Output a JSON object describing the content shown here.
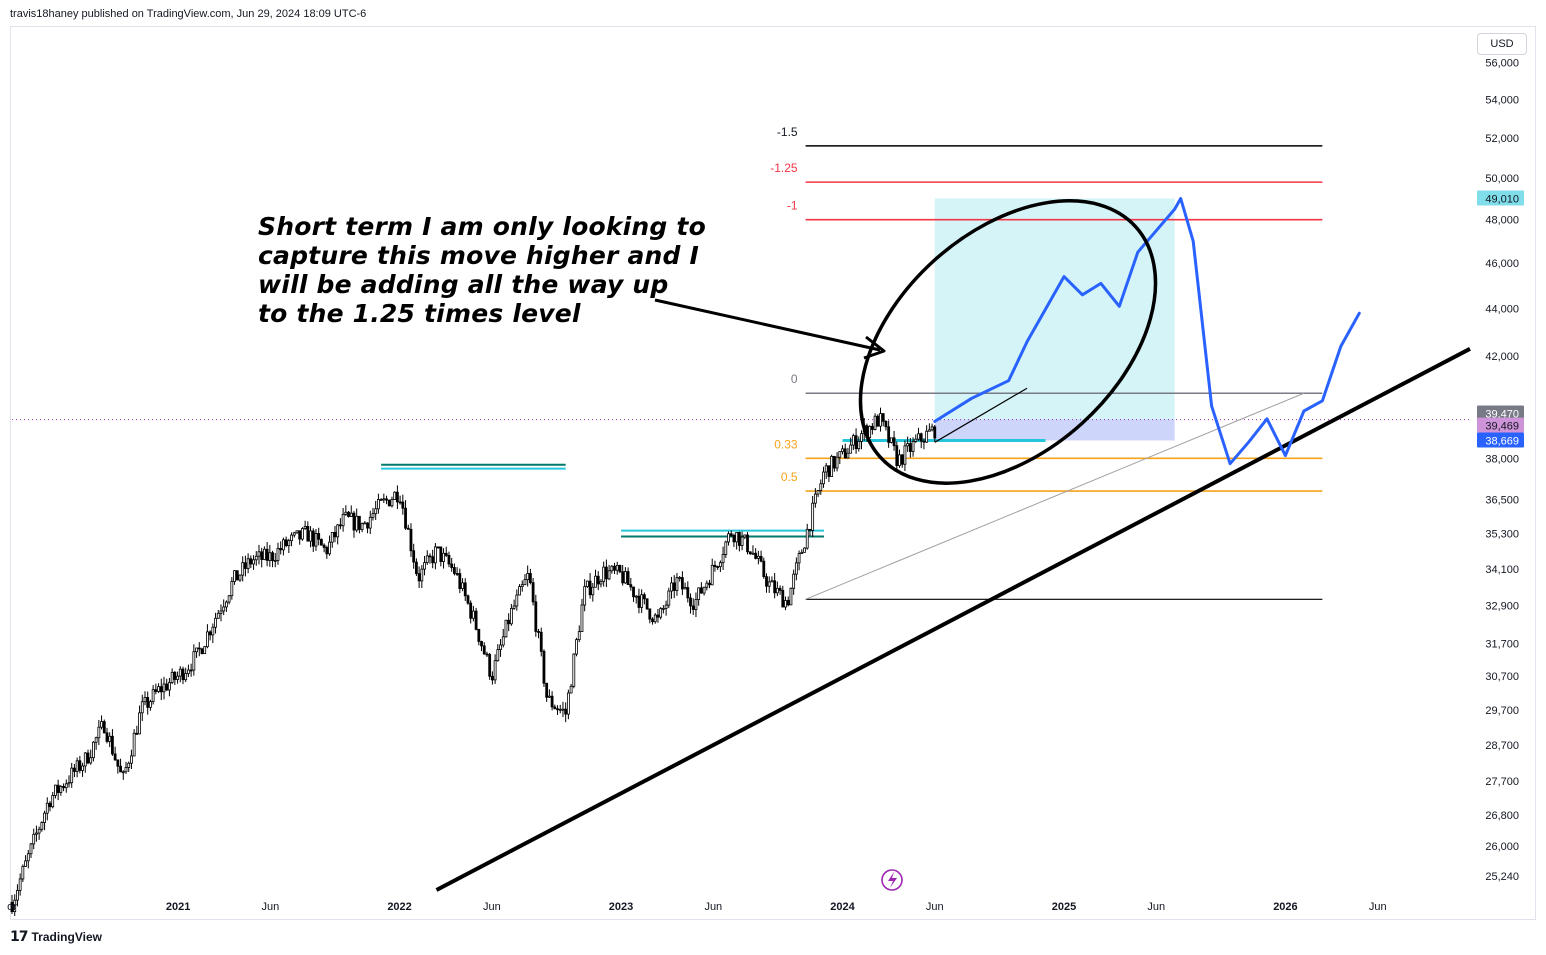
{
  "attribution": "travis18haney published on TradingView.com, Jun 29, 2024 18:09 UTC-6",
  "currency": "USD",
  "footer_brand": "TradingView",
  "annotation_lines": [
    "Short term I am only looking to",
    "capture this move higher and I",
    "will be adding all the way up",
    "to the 1.25 times level"
  ],
  "colors": {
    "candles": "#000000",
    "forecast_path": "#2962ff",
    "fib_extension": "#f23645",
    "fib_retracement": "#f7a21b",
    "projection_box": "#b2ebf2",
    "trendline": "#000000",
    "current_price_line": "#9c27b0",
    "price_badge_current": "#787b86",
    "price_badge_prev": "#ce93d8",
    "price_badge_alert": "#2962ff",
    "price_badge_target": "#80deea"
  },
  "lightning_icon": "lightning-icon",
  "chart_data": {
    "type": "candlestick",
    "title": "",
    "y_axis": {
      "ticks": [
        {
          "value": 56000,
          "label": "56,000"
        },
        {
          "value": 54000,
          "label": "54,000"
        },
        {
          "value": 52000,
          "label": "52,000"
        },
        {
          "value": 50000,
          "label": "50,000"
        },
        {
          "value": 48000,
          "label": "48,000"
        },
        {
          "value": 46000,
          "label": "46,000"
        },
        {
          "value": 44000,
          "label": "44,000"
        },
        {
          "value": 42000,
          "label": "42,000"
        },
        {
          "value": 38000,
          "label": "38,000"
        },
        {
          "value": 36500,
          "label": "36,500"
        },
        {
          "value": 35300,
          "label": "35,300"
        },
        {
          "value": 34100,
          "label": "34,100"
        },
        {
          "value": 32900,
          "label": "32,900"
        },
        {
          "value": 31700,
          "label": "31,700"
        },
        {
          "value": 30700,
          "label": "30,700"
        },
        {
          "value": 29700,
          "label": "29,700"
        },
        {
          "value": 28700,
          "label": "28,700"
        },
        {
          "value": 27700,
          "label": "27,700"
        },
        {
          "value": 26800,
          "label": "26,800"
        },
        {
          "value": 26000,
          "label": "26,000"
        },
        {
          "value": 25240,
          "label": "25,240"
        }
      ],
      "scale": "log",
      "range": [
        24900,
        57800
      ]
    },
    "x_axis": {
      "ticks": [
        {
          "label": "or",
          "date": "2020-04"
        },
        {
          "label": "2021",
          "date": "2021-01"
        },
        {
          "label": "Jun",
          "date": "2021-06"
        },
        {
          "label": "2022",
          "date": "2022-01"
        },
        {
          "label": "Jun",
          "date": "2022-06"
        },
        {
          "label": "2023",
          "date": "2023-01"
        },
        {
          "label": "Jun",
          "date": "2023-06"
        },
        {
          "label": "2024",
          "date": "2024-01"
        },
        {
          "label": "Jun",
          "date": "2024-06"
        },
        {
          "label": "2025",
          "date": "2025-01"
        },
        {
          "label": "Jun",
          "date": "2025-06"
        },
        {
          "label": "2026",
          "date": "2026-01"
        },
        {
          "label": "Jun",
          "date": "2026-06"
        }
      ],
      "range": [
        "2020-04",
        "2026-11"
      ]
    },
    "price_path": [
      {
        "date": "2020-04",
        "close": 24600
      },
      {
        "date": "2020-06",
        "close": 27200
      },
      {
        "date": "2020-08",
        "close": 28300
      },
      {
        "date": "2020-09",
        "close": 29300
      },
      {
        "date": "2020-10",
        "close": 27700
      },
      {
        "date": "2020-11",
        "close": 29700
      },
      {
        "date": "2020-12",
        "close": 30300
      },
      {
        "date": "2021-01",
        "close": 30700
      },
      {
        "date": "2021-02",
        "close": 31300
      },
      {
        "date": "2021-03",
        "close": 32500
      },
      {
        "date": "2021-04",
        "close": 33700
      },
      {
        "date": "2021-05",
        "close": 34400
      },
      {
        "date": "2021-06",
        "close": 34500
      },
      {
        "date": "2021-07",
        "close": 35000
      },
      {
        "date": "2021-08",
        "close": 35300
      },
      {
        "date": "2021-09",
        "close": 34700
      },
      {
        "date": "2021-10",
        "close": 35800
      },
      {
        "date": "2021-11",
        "close": 35600
      },
      {
        "date": "2021-12",
        "close": 36300
      },
      {
        "date": "2022-01",
        "close": 36800
      },
      {
        "date": "2022-02",
        "close": 33800
      },
      {
        "date": "2022-03",
        "close": 34700
      },
      {
        "date": "2022-04",
        "close": 34000
      },
      {
        "date": "2022-05",
        "close": 32500
      },
      {
        "date": "2022-06",
        "close": 30700
      },
      {
        "date": "2022-07",
        "close": 32600
      },
      {
        "date": "2022-08",
        "close": 33900
      },
      {
        "date": "2022-09",
        "close": 30000
      },
      {
        "date": "2022-10",
        "close": 29600
      },
      {
        "date": "2022-11",
        "close": 33300
      },
      {
        "date": "2022-12",
        "close": 34000
      },
      {
        "date": "2023-01",
        "close": 33900
      },
      {
        "date": "2023-02",
        "close": 33100
      },
      {
        "date": "2023-03",
        "close": 32400
      },
      {
        "date": "2023-04",
        "close": 33700
      },
      {
        "date": "2023-05",
        "close": 33000
      },
      {
        "date": "2023-06",
        "close": 34100
      },
      {
        "date": "2023-07",
        "close": 35400
      },
      {
        "date": "2023-08",
        "close": 34800
      },
      {
        "date": "2023-09",
        "close": 33600
      },
      {
        "date": "2023-10",
        "close": 33000
      },
      {
        "date": "2023-11",
        "close": 35200
      },
      {
        "date": "2023-12",
        "close": 37500
      },
      {
        "date": "2024-01",
        "close": 38100
      },
      {
        "date": "2024-02",
        "close": 38900
      },
      {
        "date": "2024-03",
        "close": 39500
      },
      {
        "date": "2024-04",
        "close": 37900
      },
      {
        "date": "2024-05",
        "close": 38600
      },
      {
        "date": "2024-06",
        "close": 39100
      }
    ],
    "current_price": 39469,
    "price_labels": [
      {
        "value": 49010,
        "label": "49,010",
        "role": "target"
      },
      {
        "value": 39470,
        "label": "39,470",
        "role": "last"
      },
      {
        "value": 39469,
        "label": "39,469",
        "role": "current"
      },
      {
        "value": 38669,
        "label": "38,669",
        "role": "alert"
      }
    ],
    "fib_levels": [
      {
        "ratio": "-1.5",
        "value": 51600,
        "color": "#000000"
      },
      {
        "ratio": "-1.25",
        "value": 49800,
        "color": "#f23645"
      },
      {
        "ratio": "-1",
        "value": 48000,
        "color": "#f23645"
      },
      {
        "ratio": "0",
        "value": 40500,
        "color": "#787b86"
      },
      {
        "ratio": "0.33",
        "value": 38000,
        "color": "#f7a21b"
      },
      {
        "ratio": "0.5",
        "value": 36800,
        "color": "#f7a21b"
      }
    ],
    "fib_base": {
      "value": 33100,
      "color": "#000000"
    },
    "support_resistance": [
      {
        "start": "2021-12",
        "end": "2022-10",
        "value": 37760,
        "color": "#00796b"
      },
      {
        "start": "2021-12",
        "end": "2022-10",
        "value": 37620,
        "color": "#26c6da"
      },
      {
        "start": "2023-01",
        "end": "2023-12",
        "value": 35400,
        "color": "#26c6da"
      },
      {
        "start": "2023-01",
        "end": "2023-12",
        "value": 35200,
        "color": "#00796b"
      },
      {
        "start": "2024-01",
        "end": "2024-12",
        "value": 38669,
        "color": "#26c6da"
      }
    ],
    "projection_box": {
      "start": "2024-06",
      "end": "2025-07",
      "top": 49010,
      "bottom": 39470
    },
    "stop_box": {
      "start": "2024-06",
      "end": "2025-07",
      "top": 39470,
      "bottom": 38669
    },
    "long_trendline": [
      {
        "date": "2022-03",
        "value": 24900
      },
      {
        "date": "2026-11",
        "value": 42300
      }
    ],
    "channel_line": [
      {
        "date": "2023-11",
        "value": 33100
      },
      {
        "date": "2026-02",
        "value": 40500
      }
    ],
    "forecast_path": [
      {
        "date": "2024-06",
        "value": 39400
      },
      {
        "date": "2024-08",
        "value": 40300
      },
      {
        "date": "2024-10",
        "value": 41000
      },
      {
        "date": "2024-11",
        "value": 42600
      },
      {
        "date": "2025-01",
        "value": 45400
      },
      {
        "date": "2025-02",
        "value": 44600
      },
      {
        "date": "2025-03",
        "value": 45100
      },
      {
        "date": "2025-04",
        "value": 44100
      },
      {
        "date": "2025-05",
        "value": 46500
      },
      {
        "date": "2025-07",
        "value": 48500
      },
      {
        "date": "2025-07",
        "value": 49010
      },
      {
        "date": "2025-08",
        "value": 47000
      },
      {
        "date": "2025-09",
        "value": 40000
      },
      {
        "date": "2025-10",
        "value": 37800
      },
      {
        "date": "2025-11",
        "value": 38600
      },
      {
        "date": "2025-12",
        "value": 39500
      },
      {
        "date": "2026-01",
        "value": 38100
      },
      {
        "date": "2026-02",
        "value": 39800
      },
      {
        "date": "2026-03",
        "value": 40200
      },
      {
        "date": "2026-04",
        "value": 42400
      },
      {
        "date": "2026-05",
        "value": 43800
      }
    ]
  }
}
